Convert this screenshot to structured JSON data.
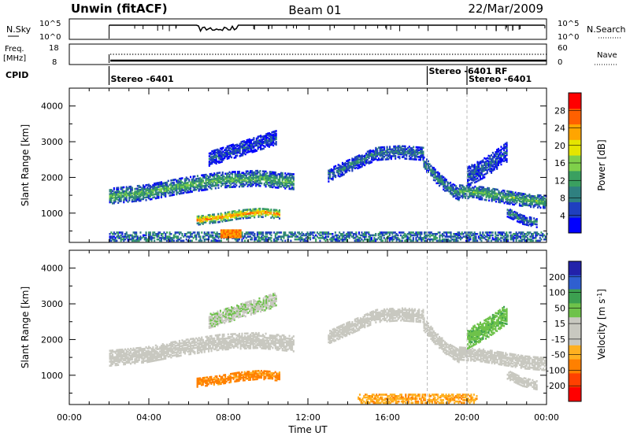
{
  "header": {
    "site": "Unwin (fitACF)",
    "beam": "Beam 01",
    "date": "22/Mar/2009"
  },
  "noise_panel": {
    "left_label": "N.Sky",
    "right_label": "N.Search",
    "left_ticks": [
      "10^5",
      "10^0"
    ],
    "right_ticks": [
      "10^5",
      "10^0"
    ]
  },
  "freq_panel": {
    "left_label_1": "Freq.",
    "left_label_2": "[MHz]",
    "right_label": "Nave",
    "left_ticks": [
      "18",
      "8"
    ],
    "right_ticks": [
      "60",
      "0"
    ]
  },
  "cpid": {
    "label": "CPID",
    "segments": [
      {
        "start_hour": 2.0,
        "text": "Stereo -6401",
        "row": 1
      },
      {
        "start_hour": 18.0,
        "text": "Stereo -6401 RF",
        "row": 0
      },
      {
        "start_hour": 20.0,
        "text": "Stereo -6401",
        "row": 1
      }
    ]
  },
  "colors": {
    "power_scale": [
      "#0000ff",
      "#1f3fbf",
      "#2f8080",
      "#3aa060",
      "#7fd04a",
      "#e5e500",
      "#ffa500",
      "#ff6000",
      "#ff0000"
    ],
    "velocity_scale": [
      "#2222aa",
      "#2f5fd0",
      "#3ca050",
      "#6ec24a",
      "#c8c8c0",
      "#c8c8c0",
      "#ffb020",
      "#ff8000",
      "#ff4000",
      "#ff0000"
    ],
    "ground_scatter": "#b9b9b9"
  },
  "chart_data": [
    {
      "type": "heatmap",
      "name": "power",
      "ylabel": "Slant Range [km]",
      "xlim_hours": [
        0,
        24
      ],
      "ylim": [
        180,
        4500
      ],
      "yticks": [
        1000,
        2000,
        3000,
        4000
      ],
      "colorbar": {
        "label": "Power [dB]",
        "range": [
          0,
          32
        ],
        "ticks": [
          4,
          8,
          12,
          16,
          20,
          24,
          28
        ]
      },
      "regions": [
        {
          "t": [
            2.0,
            11.3
          ],
          "r_mid": [
            1450,
            1550,
            1750,
            1900,
            1950,
            1850
          ],
          "width": 420,
          "level": 14
        },
        {
          "t": [
            6.4,
            10.6
          ],
          "r_mid": [
            780,
            850,
            950,
            1000,
            950
          ],
          "width": 260,
          "level": 26
        },
        {
          "t": [
            7.0,
            10.4
          ],
          "r_mid": [
            2500,
            2700,
            2900,
            3100
          ],
          "width": 400,
          "level": 6
        },
        {
          "t": [
            13.0,
            17.8
          ],
          "r_mid": [
            2050,
            2350,
            2650,
            2700,
            2650
          ],
          "width": 380,
          "level": 9
        },
        {
          "t": [
            17.8,
            19.6
          ],
          "r_mid": [
            2400,
            2000,
            1700,
            1500
          ],
          "width": 350,
          "level": 11
        },
        {
          "t": [
            19.6,
            24.0
          ],
          "r_mid": [
            1600,
            1550,
            1450,
            1350,
            1300
          ],
          "width": 380,
          "level": 14
        },
        {
          "t": [
            20.0,
            22.0
          ],
          "r_mid": [
            2000,
            2300,
            2700
          ],
          "width": 550,
          "level": 7
        },
        {
          "t": [
            22.0,
            23.5
          ],
          "r_mid": [
            1000,
            800,
            700
          ],
          "width": 250,
          "level": 10
        }
      ],
      "near_range_scatter": {
        "t": [
          2.0,
          24.0
        ],
        "r": [
          200,
          450
        ],
        "level": 8
      },
      "bright_spot": {
        "t": [
          7.6,
          8.6
        ],
        "r": [
          300,
          500
        ],
        "level": 28
      }
    },
    {
      "type": "heatmap",
      "name": "velocity",
      "ylabel": "Slant Range [km]",
      "xlabel": "Time UT",
      "xlim_hours": [
        0,
        24
      ],
      "xticks": [
        "00:00",
        "04:00",
        "08:00",
        "12:00",
        "16:00",
        "20:00",
        "00:00"
      ],
      "ylim": [
        180,
        4500
      ],
      "yticks": [
        1000,
        2000,
        3000,
        4000
      ],
      "colorbar": {
        "label": "Velocity [m s^-1]",
        "ticks": [
          "200",
          "100",
          "50",
          "15",
          "-15",
          "-50",
          "-100",
          "-200"
        ]
      },
      "regions": [
        {
          "t": [
            2.0,
            11.3
          ],
          "r_mid": [
            1450,
            1550,
            1750,
            1900,
            1950,
            1850
          ],
          "width": 420,
          "vel": 0
        },
        {
          "t": [
            6.4,
            10.6
          ],
          "r_mid": [
            780,
            850,
            950,
            1000,
            950
          ],
          "width": 260,
          "vel": -60
        },
        {
          "t": [
            7.0,
            10.4
          ],
          "r_mid": [
            2500,
            2700,
            2900,
            3100
          ],
          "width": 400,
          "vel": 10
        },
        {
          "t": [
            13.0,
            17.8
          ],
          "r_mid": [
            2050,
            2350,
            2650,
            2700,
            2650
          ],
          "width": 380,
          "vel": 0
        },
        {
          "t": [
            17.8,
            19.6
          ],
          "r_mid": [
            2400,
            2000,
            1700,
            1500
          ],
          "width": 350,
          "vel": 0
        },
        {
          "t": [
            19.6,
            24.0
          ],
          "r_mid": [
            1600,
            1550,
            1450,
            1350,
            1300
          ],
          "width": 380,
          "vel": 0
        },
        {
          "t": [
            20.0,
            22.0
          ],
          "r_mid": [
            2000,
            2300,
            2700
          ],
          "width": 550,
          "vel": 40
        },
        {
          "t": [
            22.0,
            23.5
          ],
          "r_mid": [
            1000,
            800,
            700
          ],
          "width": 250,
          "vel": 0
        }
      ],
      "near_range_scatter": {
        "t": [
          14.5,
          20.5
        ],
        "r": [
          200,
          450
        ],
        "vel": -40
      }
    }
  ]
}
